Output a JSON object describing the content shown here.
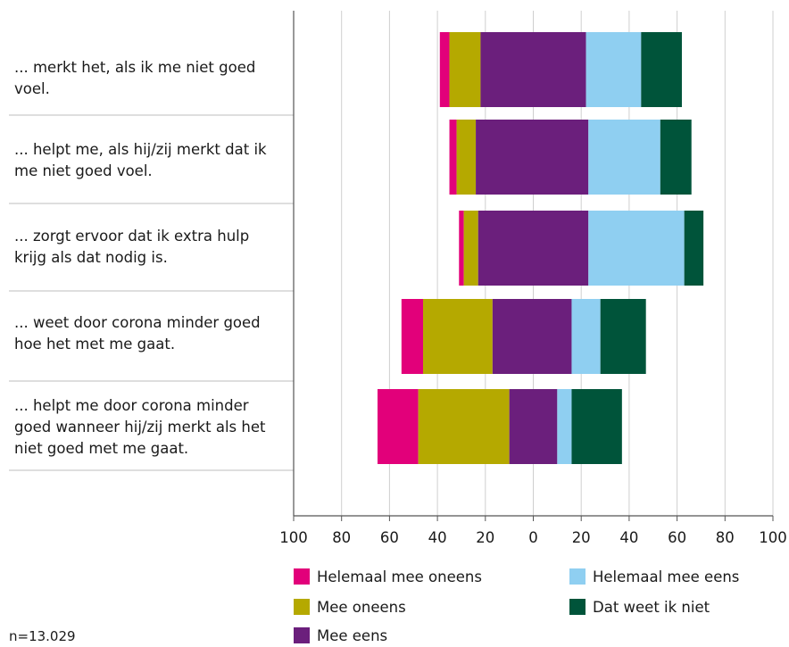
{
  "chart_data": {
    "type": "bar",
    "orientation": "horizontal-diverging-stacked",
    "categories": [
      "... merkt het, als ik me niet goed voel.",
      "... helpt me, als hij/zij merkt dat ik me niet goed voel.",
      "... zorgt ervoor dat ik extra hulp krijg als dat nodig is.",
      "... weet door corona minder goed hoe het met me gaat.",
      "... helpt me door corona minder goed wanneer hij/zij merkt als het niet goed met me gaat."
    ],
    "series": [
      {
        "name": "Helemaal mee oneens",
        "side": "negative",
        "color": "#e2007a",
        "values": [
          4,
          3,
          2,
          9,
          17
        ]
      },
      {
        "name": "Mee oneens",
        "side": "negative",
        "color": "#b5a900",
        "values": [
          13,
          8,
          6,
          29,
          38
        ]
      },
      {
        "name": "Mee eens",
        "side": "positive",
        "color": "#6b1f7c",
        "values": [
          44,
          47,
          46,
          33,
          20
        ]
      },
      {
        "name": "Helemaal mee eens",
        "side": "positive",
        "color": "#8fcff1",
        "values": [
          23,
          30,
          40,
          12,
          6
        ]
      },
      {
        "name": "Dat weet ik niet",
        "side": "positive",
        "color": "#00543a",
        "values": [
          17,
          13,
          8,
          19,
          21
        ]
      }
    ],
    "neutral_start": [
      -22,
      -24,
      -23,
      -17,
      -10
    ],
    "xlim": [
      -100,
      100
    ],
    "tick_values": [
      -100,
      -80,
      -60,
      -40,
      -20,
      0,
      20,
      40,
      60,
      80,
      100
    ],
    "tick_labels": [
      "100",
      "80",
      "60",
      "40",
      "20",
      "0",
      "20",
      "40",
      "60",
      "80",
      "100"
    ],
    "grid": true,
    "legend_position": "bottom",
    "legend_order": [
      "Helemaal mee oneens",
      "Helemaal mee eens",
      "Mee oneens",
      "Dat weet ik niet",
      "Mee eens"
    ],
    "footnote": "n=13.029",
    "title": "",
    "xlabel": "",
    "ylabel": ""
  }
}
